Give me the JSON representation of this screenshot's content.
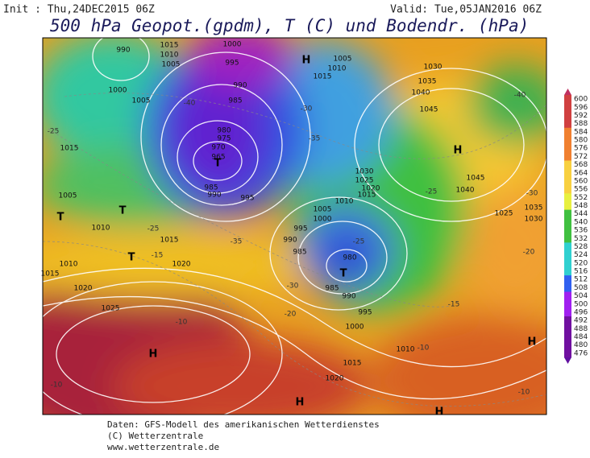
{
  "header": {
    "init": "Init : Thu,24DEC2015 06Z",
    "valid": "Valid: Tue,05JAN2016 06Z",
    "title": "500 hPa Geopot.(gpdm), T (C) und Bodendr. (hPa)"
  },
  "colorbar": {
    "ticks": [
      600,
      596,
      592,
      588,
      584,
      580,
      576,
      572,
      568,
      564,
      560,
      556,
      552,
      548,
      544,
      540,
      536,
      532,
      528,
      524,
      520,
      516,
      512,
      508,
      504,
      500,
      496,
      492,
      488,
      484,
      480,
      476
    ]
  },
  "map": {
    "centers": [
      "H",
      "H",
      "H",
      "H",
      "H",
      "H",
      "T",
      "T",
      "T",
      "T",
      "T"
    ],
    "isobar_labels": [
      "990",
      "1015",
      "1010",
      "1005",
      "1000",
      "995",
      "990",
      "985",
      "980",
      "975",
      "970",
      "965",
      "985",
      "990",
      "995",
      "1000",
      "1005",
      "1015",
      "1005",
      "1010",
      "1015",
      "1020",
      "1010",
      "1015",
      "1020",
      "1025",
      "1005",
      "1010",
      "1015",
      "1030",
      "1035",
      "1040",
      "1045",
      "1030",
      "1025",
      "1020",
      "1015",
      "1010",
      "1005",
      "1000",
      "995",
      "990",
      "985",
      "980",
      "985",
      "990",
      "995",
      "1000",
      "1010",
      "1015",
      "1020",
      "1045",
      "1040",
      "1025",
      "1030",
      "1035"
    ],
    "temperature_labels": [
      "-40",
      "-30",
      "-25",
      "-35",
      "-40",
      "-30",
      "-25",
      "-20",
      "-25",
      "-35",
      "-30",
      "-25",
      "-20",
      "-15",
      "-10",
      "-10",
      "-10",
      "-10",
      "-15"
    ]
  },
  "footer": {
    "line1": "Daten: GFS-Modell des amerikanischen Wetterdienstes",
    "line2": "(C) Wetterzentrale",
    "line3": "www.wetterzentrale.de"
  }
}
